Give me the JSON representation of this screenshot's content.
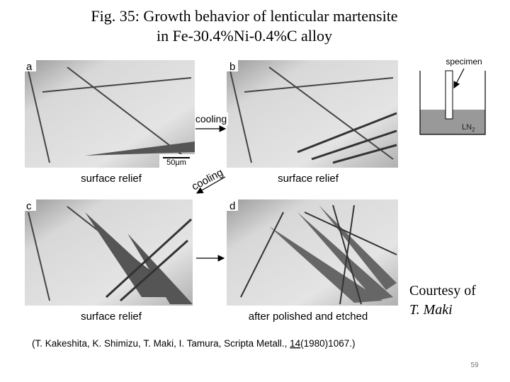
{
  "title": [
    "Fig. 35: Growth behavior of lenticular martensite",
    "in Fe-30.4%Ni-0.4%C alloy"
  ],
  "panels": [
    {
      "label": "a",
      "caption": "surface relief"
    },
    {
      "label": "b",
      "caption": "surface relief"
    },
    {
      "label": "c",
      "caption": "surface relief"
    },
    {
      "label": "d",
      "caption": "after polished and etched"
    }
  ],
  "arrows": [
    "cooling",
    "cooling"
  ],
  "scale_bar": "50μm",
  "inset": {
    "specimen": "specimen",
    "coolant": "LN",
    "coolant_sub": "2"
  },
  "courtesy": [
    "Courtesy of",
    "T. Maki"
  ],
  "citation": {
    "before": "(T. Kakeshita, K. Shimizu, T. Maki, I. Tamura, Scripta Metall., ",
    "volume": "14",
    "after": "(1980)1067.)"
  },
  "page_number": 59
}
